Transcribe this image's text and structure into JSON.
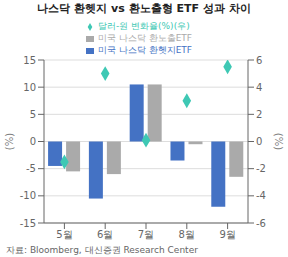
{
  "chart_data": {
    "type": "bar",
    "title": "나스닥 환헷지 vs 환노출형 ETF 성과 차이",
    "categories": [
      "5월",
      "6월",
      "7월",
      "8월",
      "9월"
    ],
    "series": [
      {
        "name": "미국 나스닥 환헷지ETF",
        "color": "#4472C4",
        "values": [
          -4.5,
          -10.5,
          10.5,
          -3.5,
          -12.0
        ]
      },
      {
        "name": "미국 나스닥 환노출ETF",
        "color": "#AAAAAA",
        "values": [
          -5.5,
          -6.0,
          10.5,
          -0.5,
          -6.5
        ]
      },
      {
        "name": "달러-원 변화율(%)(우)",
        "type": "scatter",
        "marker": "diamond",
        "axis": "y2",
        "color": "#3EC8B4",
        "values": [
          -1.5,
          5.0,
          0.1,
          3.0,
          5.5
        ]
      }
    ],
    "ylabel": "(%)",
    "y2label": "(%)",
    "ylim": [
      -15,
      15
    ],
    "yticks": [
      -15,
      -10,
      -5,
      0,
      5,
      10,
      15
    ],
    "y2lim": [
      -6,
      6
    ],
    "y2ticks": [
      -6,
      -4,
      -2,
      0,
      2,
      4,
      6
    ],
    "grid": true,
    "legend": "top",
    "annotations": [
      "자료: Bloomberg,  대신증권 Research Center"
    ]
  }
}
